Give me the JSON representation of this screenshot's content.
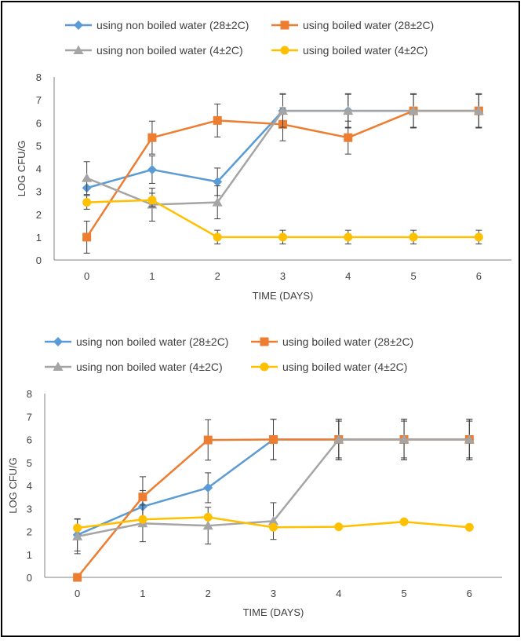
{
  "chart_data": [
    {
      "type": "line",
      "title": "",
      "xlabel": "TIME (DAYS)",
      "ylabel": "LOG CFU/G",
      "ylim": [
        0,
        8
      ],
      "x": [
        0,
        1,
        2,
        3,
        4,
        5,
        6
      ],
      "legend_position": "top",
      "series": [
        {
          "name": "using non boiled water (28±2C)",
          "color": "#5B9BD5",
          "marker": "diamond",
          "values": [
            3.15,
            3.95,
            3.42,
            6.52,
            6.52,
            6.52,
            6.52
          ],
          "errors": [
            0,
            0.6,
            0.6,
            0.75,
            0.75,
            0.75,
            0.75
          ]
        },
        {
          "name": "using boiled water (28±2C)",
          "color": "#ED7D31",
          "marker": "square",
          "values": [
            1.0,
            5.35,
            6.1,
            5.93,
            5.35,
            6.52,
            6.52
          ],
          "errors": [
            0.7,
            0.72,
            0.72,
            0.72,
            0.72,
            0.72,
            0.72
          ]
        },
        {
          "name": "using non boiled water (4±2C)",
          "color": "#A5A5A5",
          "marker": "triangle",
          "values": [
            3.58,
            2.42,
            2.52,
            6.52,
            6.52,
            6.52,
            6.52
          ],
          "errors": [
            0.72,
            0.72,
            0.72,
            0.72,
            0.72,
            0.72,
            0.72
          ]
        },
        {
          "name": "using boiled water (4±2C)",
          "color": "#FFC000",
          "marker": "circle",
          "values": [
            2.52,
            2.62,
            1.0,
            1.0,
            1.0,
            1.0,
            1.0
          ],
          "errors": [
            0.3,
            0.3,
            0.3,
            0.3,
            0.3,
            0.3,
            0.3
          ]
        }
      ]
    },
    {
      "type": "line",
      "title": "",
      "xlabel": "TIME (DAYS)",
      "ylabel": "LOG CFU/G",
      "ylim": [
        0,
        8
      ],
      "x": [
        0,
        1,
        2,
        3,
        4,
        5,
        6
      ],
      "legend_position": "top",
      "series": [
        {
          "name": "using non boiled water (28±2C)",
          "color": "#5B9BD5",
          "marker": "diamond",
          "values": [
            1.85,
            3.08,
            3.9,
            6.0,
            6.0,
            6.0,
            6.0
          ],
          "errors": [
            0.7,
            0.7,
            0.65,
            0.88,
            0.88,
            0.88,
            0.88
          ]
        },
        {
          "name": "using boiled water (28±2C)",
          "color": "#ED7D31",
          "marker": "square",
          "values": [
            0.0,
            3.5,
            5.98,
            6.0,
            6.0,
            6.0,
            6.0
          ],
          "errors": [
            0,
            0.88,
            0.88,
            0.88,
            0.88,
            0.88,
            0.88
          ]
        },
        {
          "name": "using non boiled water (4±2C)",
          "color": "#A5A5A5",
          "marker": "triangle",
          "values": [
            1.78,
            2.35,
            2.25,
            2.45,
            6.0,
            6.0,
            6.0
          ],
          "errors": [
            0.75,
            0.8,
            0.8,
            0.8,
            0.8,
            0.8,
            0.8
          ]
        },
        {
          "name": "using boiled water (4±2C)",
          "color": "#FFC000",
          "marker": "circle",
          "values": [
            2.15,
            2.52,
            2.62,
            2.18,
            2.2,
            2.42,
            2.18
          ],
          "errors": [
            0,
            0,
            0,
            0,
            0,
            0,
            0
          ]
        }
      ]
    }
  ]
}
